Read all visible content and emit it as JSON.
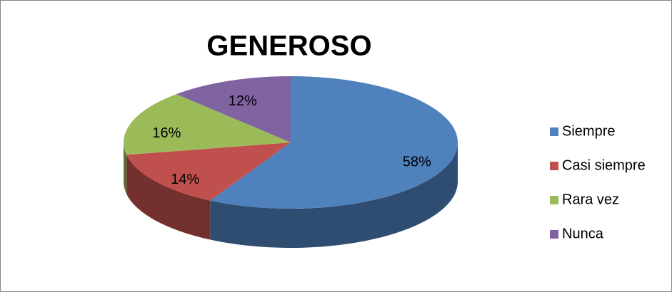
{
  "chart_data": {
    "type": "pie",
    "title": "GENEROSO",
    "categories": [
      "Siempre",
      "Casi siempre",
      "Rara vez",
      "Nunca"
    ],
    "values": [
      58,
      14,
      16,
      12
    ],
    "value_labels": [
      "58%",
      "14%",
      "16%",
      "12%"
    ],
    "colors": [
      "#4f81bd",
      "#c0504d",
      "#9bbb59",
      "#8064a2"
    ],
    "legend": "right"
  }
}
